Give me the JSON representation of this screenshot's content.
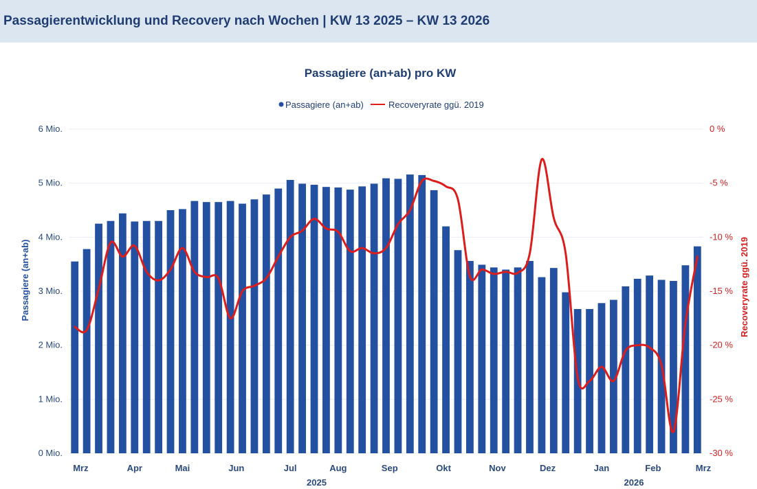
{
  "header": {
    "title": "Passagierentwicklung und Recovery nach Wochen | KW 13 2025 – KW 13 2026"
  },
  "chart_data": {
    "type": "bar",
    "title": "Passagiere (an+ab) pro KW",
    "legend": [
      "Passagiere (an+ab)",
      "Recoveryrate ggü. 2019"
    ],
    "legend_position": "top-center",
    "ylabel": "Passagiere (an+ab)",
    "y2label": "Recoveryrate ggü. 2019",
    "ylim": [
      0,
      6000000
    ],
    "y2lim": [
      -30,
      0
    ],
    "yticks": [
      "0 Mio.",
      "1 Mio.",
      "2 Mio.",
      "3 Mio.",
      "4 Mio.",
      "5 Mio.",
      "6 Mio."
    ],
    "y2ticks": [
      "-30 %",
      "-25 %",
      "-20 %",
      "-15 %",
      "-10 %",
      "-5 %",
      "0 %"
    ],
    "month_labels": [
      "Mrz",
      "Apr",
      "Mai",
      "Jun",
      "Jul",
      "Aug",
      "Sep",
      "Okt",
      "Nov",
      "Dez",
      "Jan",
      "Feb",
      "Mrz"
    ],
    "month_label_week": [
      1,
      5.5,
      9.5,
      14,
      18.5,
      22.5,
      26.8,
      31.3,
      35.8,
      40,
      44.5,
      48.8,
      53
    ],
    "year_labels": [
      "2025",
      "2026"
    ],
    "year_label_week": [
      20.7,
      47.2
    ],
    "grid": true,
    "series": [
      {
        "name": "Passagiere (an+ab)",
        "type": "bar",
        "color": "#2350a0",
        "values": [
          3550000,
          3780000,
          4250000,
          4300000,
          4440000,
          4290000,
          4300000,
          4300000,
          4500000,
          4520000,
          4670000,
          4650000,
          4650000,
          4670000,
          4620000,
          4700000,
          4790000,
          4900000,
          5060000,
          4990000,
          4970000,
          4930000,
          4920000,
          4880000,
          4940000,
          4990000,
          5090000,
          5080000,
          5160000,
          5150000,
          4870000,
          4200000,
          3760000,
          3560000,
          3490000,
          3440000,
          3400000,
          3440000,
          3560000,
          3260000,
          3430000,
          2980000,
          2670000,
          2670000,
          2780000,
          2840000,
          3090000,
          3230000,
          3290000,
          3210000,
          3190000,
          3480000,
          3830000
        ]
      },
      {
        "name": "Recoveryrate ggü. 2019",
        "type": "line",
        "color": "#dd1c1c",
        "values": [
          -18.3,
          -18.6,
          -14.8,
          -10.5,
          -11.8,
          -10.8,
          -13.2,
          -14.0,
          -13.0,
          -11.0,
          -13.2,
          -13.7,
          -13.8,
          -17.5,
          -15.0,
          -14.5,
          -13.8,
          -11.8,
          -10.0,
          -9.4,
          -8.3,
          -9.2,
          -9.5,
          -11.3,
          -11.0,
          -11.5,
          -11.0,
          -8.8,
          -7.5,
          -4.8,
          -4.8,
          -5.3,
          -6.5,
          -13.6,
          -13.0,
          -13.4,
          -13.2,
          -13.3,
          -11.5,
          -2.8,
          -8.2,
          -11.5,
          -23.0,
          -23.3,
          -22.0,
          -23.3,
          -20.5,
          -20.0,
          -20.2,
          -21.8,
          -28.0,
          -18.0,
          -11.8
        ]
      }
    ]
  }
}
